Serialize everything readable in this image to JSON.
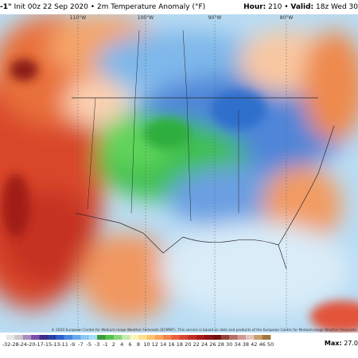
{
  "header": {
    "model": "-1\"",
    "init": "Init 00z 22 Sep 2020",
    "field": "2m Temperature Anomaly (°F)",
    "hour_label": "Hour:",
    "hour": "210",
    "valid_label": "Valid:",
    "valid": "18z Wed 30"
  },
  "longitudes": [
    "110°W",
    "100°W",
    "90°W",
    "80°W"
  ],
  "copyright": "© 2020 European Centre for Medium-range Weather Forecasts (ECMWF). This service is based on data and products of the European Centre for Medium-range Weather Forecasts",
  "colorbar": {
    "labels": [
      "-32",
      "-28",
      "-24",
      "-20",
      "-17",
      "-15",
      "-13",
      "-11",
      "-9",
      "-7",
      "-5",
      "-3",
      "-1",
      "2",
      "4",
      "6",
      "8",
      "10",
      "12",
      "14",
      "16",
      "18",
      "20",
      "22",
      "24",
      "26",
      "28",
      "30",
      "34",
      "38",
      "42",
      "46",
      "50"
    ]
  },
  "max": {
    "label": "Max:",
    "value": "27.0"
  }
}
